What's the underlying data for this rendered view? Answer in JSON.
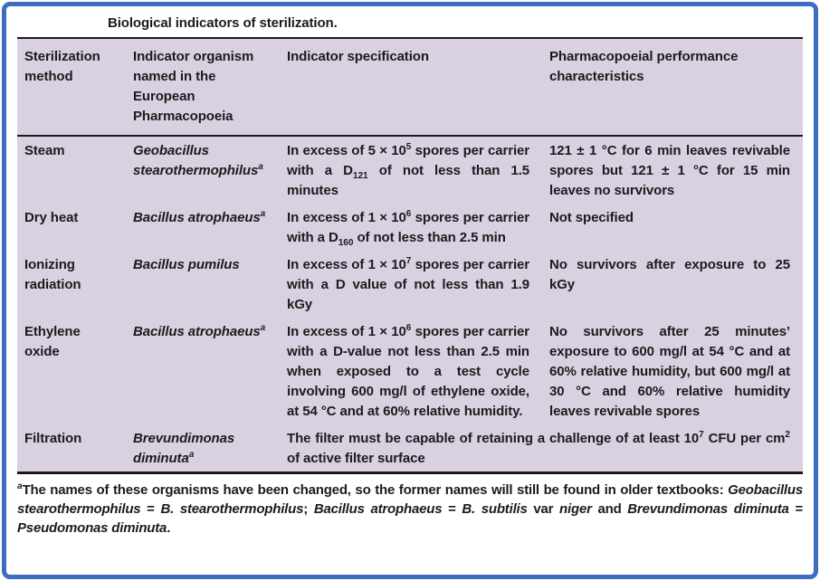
{
  "colors": {
    "border_blue": "#3d6cc0",
    "table_bg": "#d9d1e2",
    "rule": "#1a1a1a",
    "text": "#1b1b1b"
  },
  "caption": "Biological indicators of sterilization.",
  "table": {
    "headers": [
      "Sterilization method",
      "Indicator organism named in the European Pharmacopoeia",
      "Indicator specification",
      "Pharmacopoeial performance characteristics"
    ],
    "rows": [
      {
        "method": "Steam",
        "organism": [
          {
            "t": "Geobacillus stearothermophilus",
            "i": true
          },
          {
            "t": "a",
            "sup": true,
            "i": true
          }
        ],
        "spec": [
          {
            "t": "In excess of 5 × 10"
          },
          {
            "t": "5",
            "sup": true
          },
          {
            "t": " spores per carrier with a D"
          },
          {
            "t": "121",
            "sub": true
          },
          {
            "t": " of not less than 1.5 minutes"
          }
        ],
        "performance": [
          {
            "t": "121 ± 1 °C for 6 min leaves revivable spores but 121 ± 1 °C for 15 min leaves no survivors"
          }
        ]
      },
      {
        "method": "Dry heat",
        "organism": [
          {
            "t": "Bacillus atrophaeus",
            "i": true
          },
          {
            "t": "a",
            "sup": true,
            "i": true
          }
        ],
        "spec": [
          {
            "t": "In excess of 1 × 10"
          },
          {
            "t": "6",
            "sup": true
          },
          {
            "t": " spores per carrier with a D"
          },
          {
            "t": "160",
            "sub": true
          },
          {
            "t": " of not less than 2.5 min"
          }
        ],
        "performance": [
          {
            "t": "Not specified"
          }
        ]
      },
      {
        "method": "Ionizing radiation",
        "organism": [
          {
            "t": "Bacillus pumilus",
            "i": true
          }
        ],
        "spec": [
          {
            "t": "In excess of 1 × 10"
          },
          {
            "t": "7",
            "sup": true
          },
          {
            "t": " spores per carrier with a D value of not less than 1.9 kGy"
          }
        ],
        "performance": [
          {
            "t": "No survivors after exposure to 25 kGy"
          }
        ]
      },
      {
        "method": "Ethylene oxide",
        "organism": [
          {
            "t": "Bacillus atrophaeus",
            "i": true
          },
          {
            "t": "a",
            "sup": true,
            "i": true
          }
        ],
        "spec": [
          {
            "t": "In excess of 1 × 10"
          },
          {
            "t": "6",
            "sup": true
          },
          {
            "t": " spores per carrier with a D-value not less than 2.5 min when exposed to a test cycle involving 600 mg/l of ethylene oxide, at 54 °C and at 60% relative humidity."
          }
        ],
        "performance": [
          {
            "t": "No survivors after 25 minutes’ exposure to 600 mg/l at 54 °C and at 60% relative humidity, but 600 mg/l at 30 °C and 60% relative humidity leaves revivable spores"
          }
        ]
      },
      {
        "method": "Filtration",
        "organism": [
          {
            "t": "Brevundimonas diminuta",
            "i": true
          },
          {
            "t": "a",
            "sup": true,
            "i": true
          }
        ],
        "spec": [
          {
            "t": "The filter must be capable of retaining a challenge of at least 10"
          },
          {
            "t": "7",
            "sup": true
          },
          {
            "t": " CFU per cm"
          },
          {
            "t": "2",
            "sup": true
          },
          {
            "t": " of active filter surface"
          }
        ]
      }
    ]
  },
  "footnote": [
    {
      "t": "a",
      "sup": true,
      "i": true
    },
    {
      "t": "The names of these organisms have been changed, so the former names will still be found in older textbooks: "
    },
    {
      "t": "Geobacillus stearothermophilus",
      "i": true
    },
    {
      "t": " = "
    },
    {
      "t": "B. stearothermophilus",
      "i": true
    },
    {
      "t": "; "
    },
    {
      "t": "Bacillus atrophaeus",
      "i": true
    },
    {
      "t": " = "
    },
    {
      "t": "B. subtilis",
      "i": true
    },
    {
      "t": " var "
    },
    {
      "t": "niger",
      "i": true
    },
    {
      "t": " and "
    },
    {
      "t": "Brevundimonas diminuta",
      "i": true
    },
    {
      "t": " = "
    },
    {
      "t": "Pseudomonas diminuta",
      "i": true
    },
    {
      "t": "."
    }
  ]
}
